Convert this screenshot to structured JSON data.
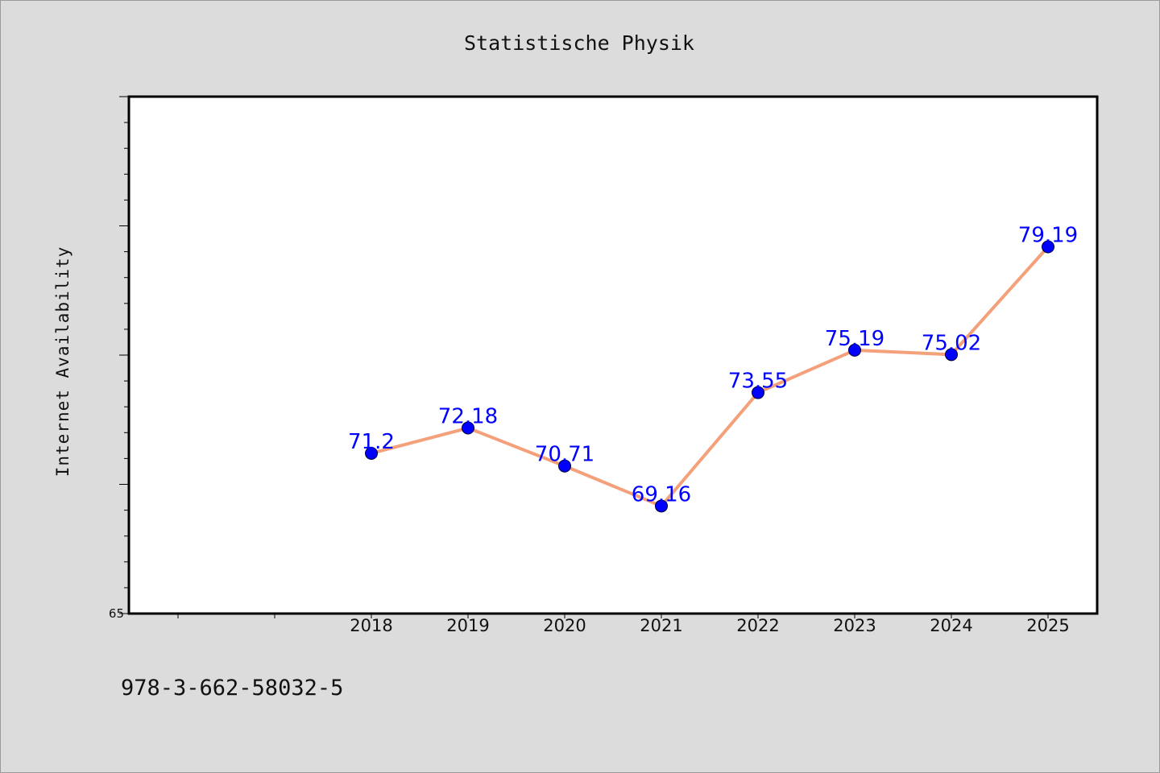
{
  "chart_data": {
    "type": "line",
    "title": "Statistische Physik",
    "xlabel": "",
    "ylabel": "Internet Availability",
    "categories": [
      "2018",
      "2019",
      "2020",
      "2021",
      "2022",
      "2023",
      "2024",
      "2025"
    ],
    "series": [
      {
        "values": [
          71.2,
          72.18,
          70.71,
          69.16,
          73.55,
          75.19,
          75.02,
          79.19
        ],
        "data_labels": [
          "71.2",
          "72.18",
          "70.71",
          "69.16",
          "73.55",
          "75.19",
          "75.02",
          "79.19"
        ],
        "line_color": "#f4a07a",
        "marker_color": "#0000ff"
      }
    ],
    "ylim": [
      65,
      85
    ],
    "ytick_labels": [
      "65"
    ],
    "grid": false,
    "legend": "none"
  },
  "footer": {
    "isbn": "978-3-662-58032-5"
  },
  "colors": {
    "background": "#dcdcdc",
    "plot_area": "#ffffff",
    "axis": "#000000"
  }
}
